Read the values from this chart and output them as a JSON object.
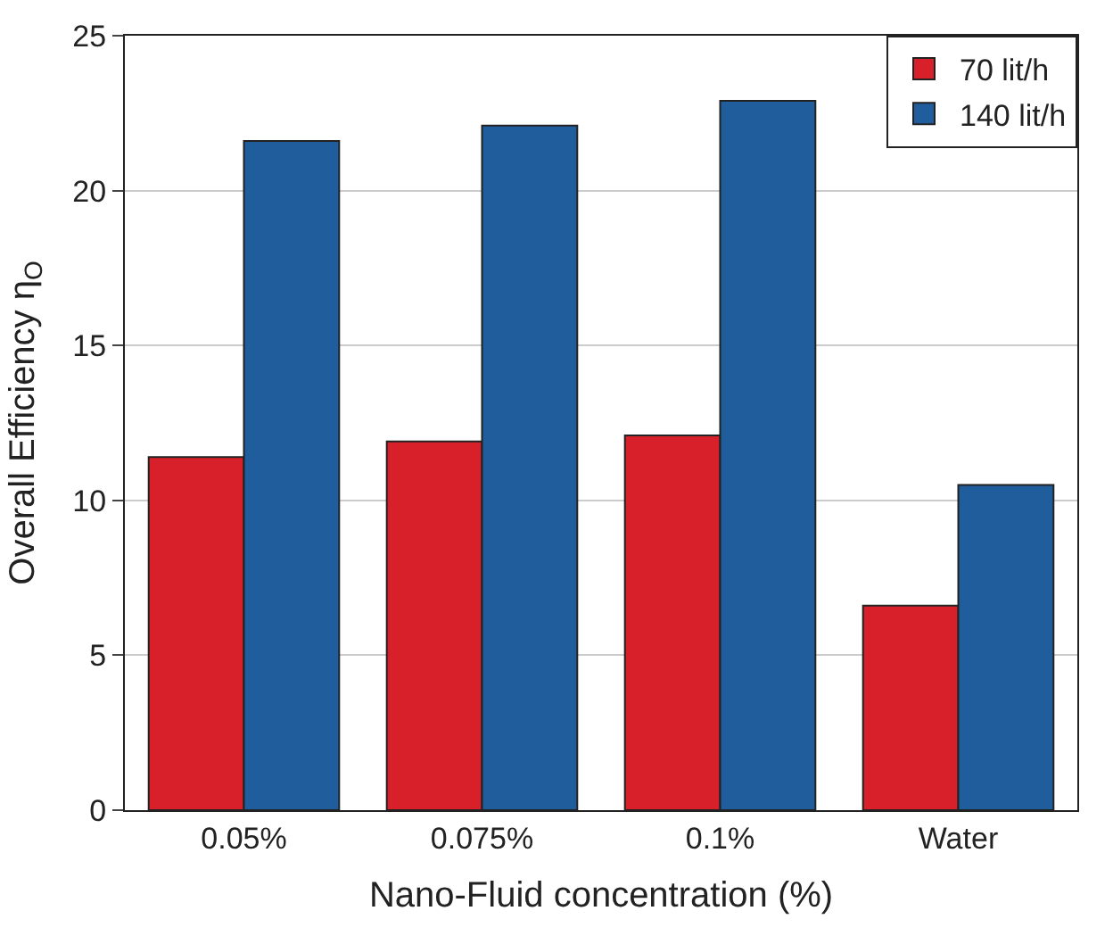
{
  "chart_data": {
    "type": "bar",
    "xlabel": "Nano-Fluid concentration (%)",
    "ylabel": "Overall Efficiency η$_{O}$",
    "categories": [
      "0.05%",
      "0.075%",
      "0.1%",
      "Water"
    ],
    "series": [
      {
        "name": "70 lit/h",
        "color": "#d8202a",
        "values": [
          11.4,
          11.9,
          12.1,
          6.6
        ]
      },
      {
        "name": "140 lit/h",
        "color": "#1f5d9c",
        "values": [
          21.6,
          22.1,
          22.9,
          10.5
        ]
      }
    ],
    "ylim": [
      0,
      25
    ],
    "yticks": [
      0,
      5,
      10,
      15,
      20,
      25
    ],
    "grid": "y",
    "legend": "top right"
  }
}
